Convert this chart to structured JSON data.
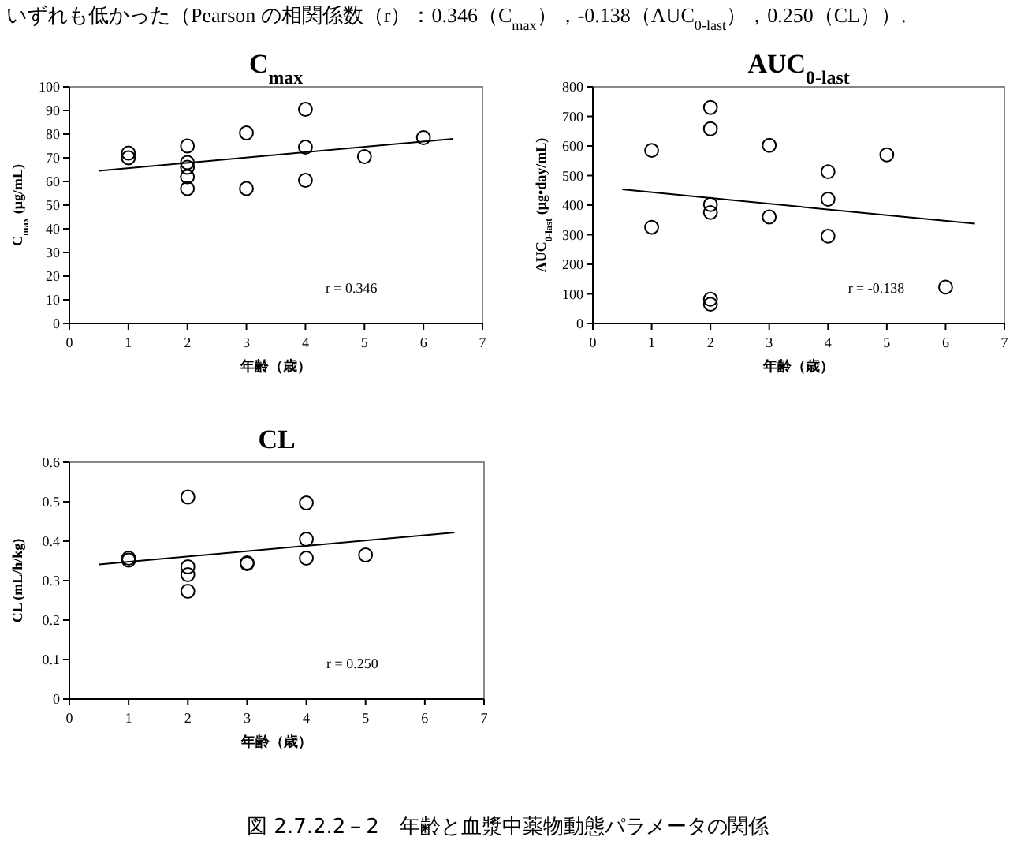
{
  "chart_data": [
    {
      "type": "scatter",
      "title": "C$_{max}$",
      "xlabel": "年齢（歳）",
      "ylabel": "C$_{max}$ (μg/mL)",
      "annotations": [
        "r = 0.346",
        "いずれも低かった（Pearson の相関係数（r）：0.346（C$_{max}$），-0.138（AUC$_{0-last}$），0.250（CL））.",
        "図 2.7.2.2－2　年齢と血漿中薬物動態パラメータの関係"
      ],
      "xlim": [
        0,
        7
      ],
      "xticks": [
        0,
        1,
        2,
        3,
        4,
        5,
        6,
        7
      ],
      "ylim": [
        0,
        100
      ],
      "yticks": [
        0,
        10,
        20,
        30,
        40,
        50,
        60,
        70,
        80,
        90,
        100
      ],
      "series": [
        {
          "type": "scatter",
          "marker": "circle",
          "color": "#000000",
          "x": [
            1,
            1,
            2,
            2,
            2,
            2,
            2,
            3,
            3,
            4,
            4,
            4,
            5,
            6
          ],
          "values": [
            72,
            70,
            75,
            68,
            66,
            62,
            57,
            80.5,
            57,
            90.5,
            74.5,
            60.5,
            70.5,
            78.5
          ]
        },
        {
          "type": "line",
          "marker": "none",
          "color": "#000000",
          "x": [
            0.5,
            6.5
          ],
          "values": [
            64.5,
            78
          ]
        }
      ]
    },
    {
      "type": "scatter",
      "title": "AUC$_{0-last}$",
      "xlabel": "年齢（歳）",
      "ylabel": "AUC$_{0-last}$ (μg•day/mL)",
      "annotations": [
        "r = -0.138"
      ],
      "xlim": [
        0,
        7
      ],
      "xticks": [
        0,
        1,
        2,
        3,
        4,
        5,
        6,
        7
      ],
      "ylim": [
        0,
        800
      ],
      "yticks": [
        0,
        100,
        200,
        300,
        400,
        500,
        600,
        700,
        800
      ],
      "series": [
        {
          "type": "scatter",
          "marker": "circle",
          "color": "#000000",
          "x": [
            1,
            1,
            2,
            2,
            2,
            2,
            2,
            2,
            3,
            3,
            4,
            4,
            4,
            5,
            6
          ],
          "values": [
            585,
            325,
            730,
            658,
            402,
            375,
            82,
            65,
            602,
            360,
            513,
            420,
            295,
            570,
            123
          ]
        },
        {
          "type": "line",
          "marker": "none",
          "color": "#000000",
          "x": [
            0.5,
            6.5
          ],
          "values": [
            453,
            337
          ]
        }
      ]
    },
    {
      "type": "scatter",
      "title": "CL",
      "xlabel": "年齢（歳）",
      "ylabel": "CL (mL/h/kg)",
      "annotations": [
        "r = 0.250"
      ],
      "xlim": [
        0,
        7
      ],
      "xticks": [
        0,
        1,
        2,
        3,
        4,
        5,
        6,
        7
      ],
      "ylim": [
        0,
        0.6
      ],
      "yticks": [
        0,
        0.1,
        0.2,
        0.3,
        0.4,
        0.5,
        0.6
      ],
      "series": [
        {
          "type": "scatter",
          "marker": "circle",
          "color": "#000000",
          "x": [
            1,
            1,
            2,
            2,
            2,
            2,
            3,
            3,
            4,
            4,
            4,
            5
          ],
          "values": [
            0.357,
            0.352,
            0.512,
            0.335,
            0.315,
            0.273,
            0.345,
            0.343,
            0.497,
            0.405,
            0.357,
            0.365
          ]
        },
        {
          "type": "line",
          "marker": "none",
          "color": "#000000",
          "x": [
            0.5,
            6.5
          ],
          "values": [
            0.341,
            0.422
          ]
        }
      ]
    }
  ]
}
